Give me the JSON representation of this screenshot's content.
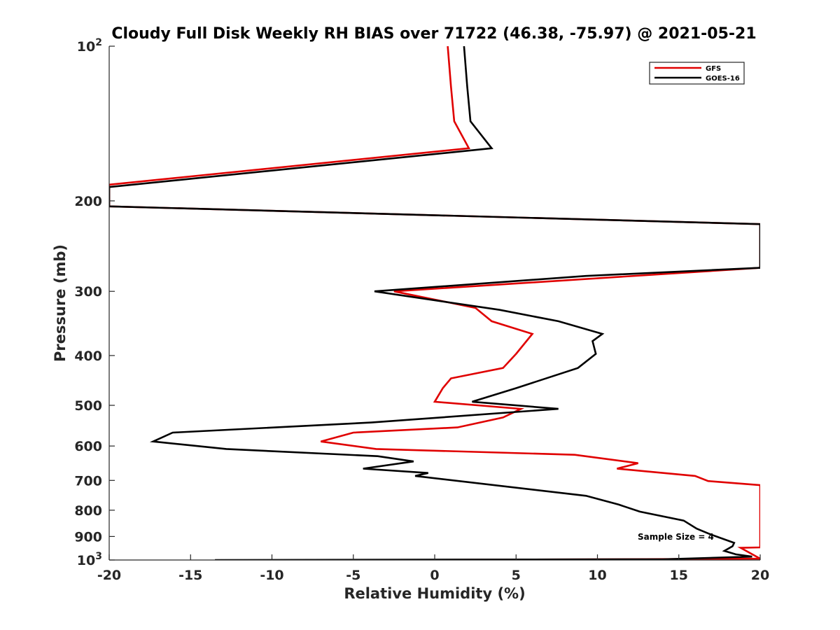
{
  "chart_data": {
    "type": "line",
    "title": "Cloudy Full Disk Weekly RH BIAS over 71722 (46.38, -75.97) @ 2021-05-21",
    "xlabel": "Relative Humidity (%)",
    "ylabel": "Pressure (mb)",
    "xlim": [
      -20,
      20
    ],
    "ylim": [
      100,
      1000
    ],
    "yscale": "log",
    "y_reversed": true,
    "grid": false,
    "legend_position": "top-right",
    "x_ticks": [
      "-20",
      "-15",
      "-10",
      "-5",
      "0",
      "5",
      "10",
      "15",
      "20"
    ],
    "y_ticks": [
      {
        "value": 100,
        "label": "10",
        "sup": "2"
      },
      {
        "value": 200,
        "label": "200"
      },
      {
        "value": 300,
        "label": "300"
      },
      {
        "value": 400,
        "label": "400"
      },
      {
        "value": 500,
        "label": "500"
      },
      {
        "value": 600,
        "label": "600"
      },
      {
        "value": 700,
        "label": "700"
      },
      {
        "value": 800,
        "label": "800"
      },
      {
        "value": 900,
        "label": "900"
      },
      {
        "value": 1000,
        "label": "10",
        "sup": "3"
      }
    ],
    "annotation": "Sample Size = 4",
    "series": [
      {
        "name": "GFS",
        "color": "#e00000",
        "points": [
          [
            0.8,
            100
          ],
          [
            1.0,
            120
          ],
          [
            1.2,
            140
          ],
          [
            2.1,
            158
          ],
          [
            -20,
            186
          ],
          [
            -20,
            205
          ],
          [
            20,
            222
          ],
          [
            20,
            270
          ],
          [
            -2.5,
            300
          ],
          [
            2.5,
            323
          ],
          [
            3.5,
            343
          ],
          [
            6.0,
            363
          ],
          [
            5.0,
            397
          ],
          [
            4.2,
            423
          ],
          [
            1.0,
            443
          ],
          [
            0.5,
            463
          ],
          [
            0.0,
            492
          ],
          [
            5.3,
            508
          ],
          [
            4.2,
            528
          ],
          [
            1.4,
            552
          ],
          [
            -5.0,
            565
          ],
          [
            -7.0,
            588
          ],
          [
            -3.6,
            608
          ],
          [
            8.6,
            624
          ],
          [
            12.5,
            648
          ],
          [
            11.2,
            664
          ],
          [
            16.0,
            686
          ],
          [
            16.8,
            702
          ],
          [
            20,
            715
          ],
          [
            20,
            945
          ],
          [
            18.8,
            947
          ],
          [
            20,
            994
          ],
          [
            -1.0,
            1000
          ]
        ]
      },
      {
        "name": "GOES-16",
        "color": "#000000",
        "points": [
          [
            1.8,
            100
          ],
          [
            2.0,
            120
          ],
          [
            2.2,
            140
          ],
          [
            3.5,
            158
          ],
          [
            -20,
            188
          ],
          [
            -20,
            205
          ],
          [
            20,
            222
          ],
          [
            20,
            270
          ],
          [
            9.3,
            280
          ],
          [
            -3.7,
            300
          ],
          [
            4.0,
            326
          ],
          [
            7.6,
            343
          ],
          [
            10.3,
            363
          ],
          [
            9.7,
            375
          ],
          [
            9.9,
            397
          ],
          [
            8.8,
            423
          ],
          [
            5.0,
            463
          ],
          [
            2.3,
            492
          ],
          [
            7.6,
            508
          ],
          [
            -3.9,
            540
          ],
          [
            -16.1,
            565
          ],
          [
            -17.3,
            588
          ],
          [
            -12.8,
            608
          ],
          [
            -3.5,
            628
          ],
          [
            -1.3,
            643
          ],
          [
            -4.4,
            664
          ],
          [
            -0.4,
            677
          ],
          [
            -1.2,
            686
          ],
          [
            9.3,
            750
          ],
          [
            11.3,
            780
          ],
          [
            12.6,
            805
          ],
          [
            15.3,
            838
          ],
          [
            16.1,
            869
          ],
          [
            17.0,
            893
          ],
          [
            18.4,
            926
          ],
          [
            18.3,
            940
          ],
          [
            17.8,
            960
          ],
          [
            18.5,
            975
          ],
          [
            19.5,
            985
          ],
          [
            14.0,
            997
          ],
          [
            -13.5,
            1000
          ]
        ]
      }
    ]
  }
}
